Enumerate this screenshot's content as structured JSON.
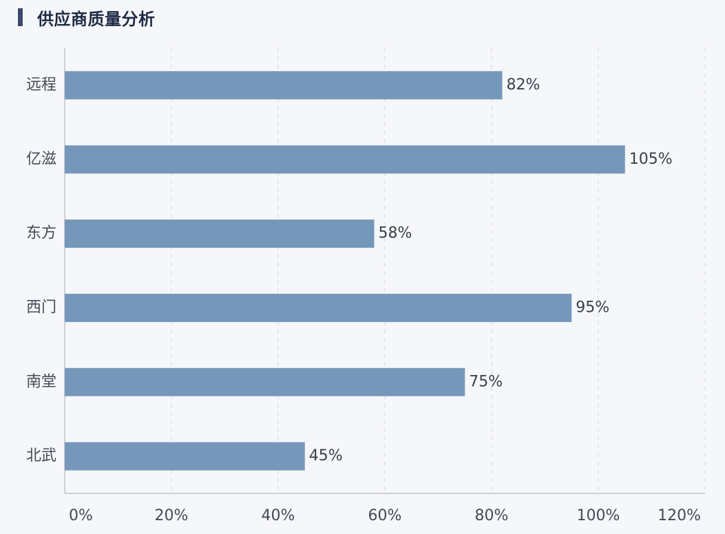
{
  "header": {
    "title": "供应商质量分析"
  },
  "chart_data": {
    "type": "bar",
    "orientation": "horizontal",
    "title": "供应商质量分析",
    "categories": [
      "远程",
      "亿滋",
      "东方",
      "西门",
      "南堂",
      "北武"
    ],
    "values": [
      82,
      105,
      58,
      95,
      75,
      45
    ],
    "value_labels": [
      "82%",
      "105%",
      "58%",
      "95%",
      "75%",
      "45%"
    ],
    "xlim": [
      0,
      120
    ],
    "xticks": [
      0,
      20,
      40,
      60,
      80,
      100,
      120
    ],
    "xtick_labels": [
      "0%",
      "20%",
      "40%",
      "60%",
      "80%",
      "100%",
      "120%"
    ],
    "xlabel": "",
    "ylabel": "",
    "grid": "vertical-dashed",
    "legend": "none",
    "bar_color": "#7597ba"
  }
}
